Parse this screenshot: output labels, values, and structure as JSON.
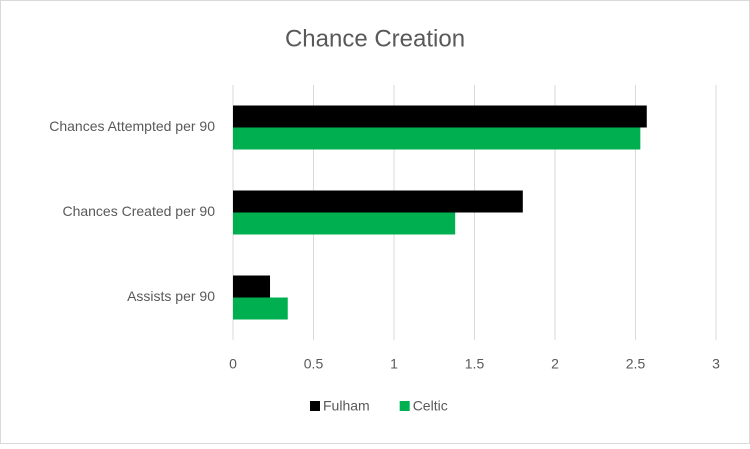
{
  "chart_data": {
    "type": "hbar",
    "title": "Chance Creation",
    "categories": [
      "Chances Attempted per 90",
      "Chances Created per 90",
      "Assists per 90"
    ],
    "series": [
      {
        "name": "Fulham",
        "color": "#000000",
        "values": [
          2.57,
          1.8,
          0.23
        ]
      },
      {
        "name": "Celtic",
        "color": "#00b050",
        "values": [
          2.53,
          1.38,
          0.34
        ]
      }
    ],
    "xlim": [
      0,
      3
    ],
    "xticks": [
      0,
      0.5,
      1,
      1.5,
      2,
      2.5,
      3
    ],
    "grid": true,
    "legend": "bottom"
  }
}
